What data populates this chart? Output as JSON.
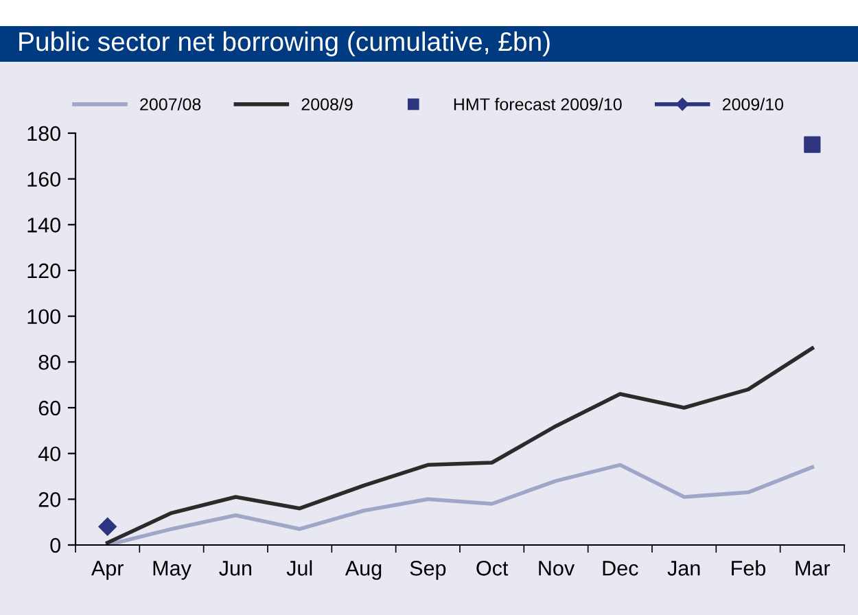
{
  "chart_data": {
    "type": "line",
    "title": "Public sector net borrowing (cumulative, £bn)",
    "categories": [
      "Apr",
      "May",
      "Jun",
      "Jul",
      "Aug",
      "Sep",
      "Oct",
      "Nov",
      "Dec",
      "Jan",
      "Feb",
      "Mar"
    ],
    "series": [
      {
        "name": "2007/08",
        "color": "#9fa6c8",
        "values": [
          0,
          7,
          13,
          7,
          15,
          20,
          18,
          28,
          35,
          21,
          23,
          34
        ]
      },
      {
        "name": "2008/9",
        "color": "#2b2b2b",
        "values": [
          1,
          14,
          21,
          16,
          26,
          35,
          36,
          52,
          66,
          60,
          68,
          86
        ]
      },
      {
        "name": "HMT forecast 2009/10",
        "color": "#2e3580",
        "type": "scatter",
        "marker": "square",
        "values": [
          null,
          null,
          null,
          null,
          null,
          null,
          null,
          null,
          null,
          null,
          null,
          175
        ]
      },
      {
        "name": "2009/10",
        "color": "#2e3580",
        "marker": "diamond",
        "values": [
          8,
          null,
          null,
          null,
          null,
          null,
          null,
          null,
          null,
          null,
          null,
          null
        ]
      }
    ],
    "ylim": [
      0,
      180
    ],
    "yticks": [
      0,
      20,
      40,
      60,
      80,
      100,
      120,
      140,
      160,
      180
    ],
    "grid": false,
    "legend": "top"
  }
}
